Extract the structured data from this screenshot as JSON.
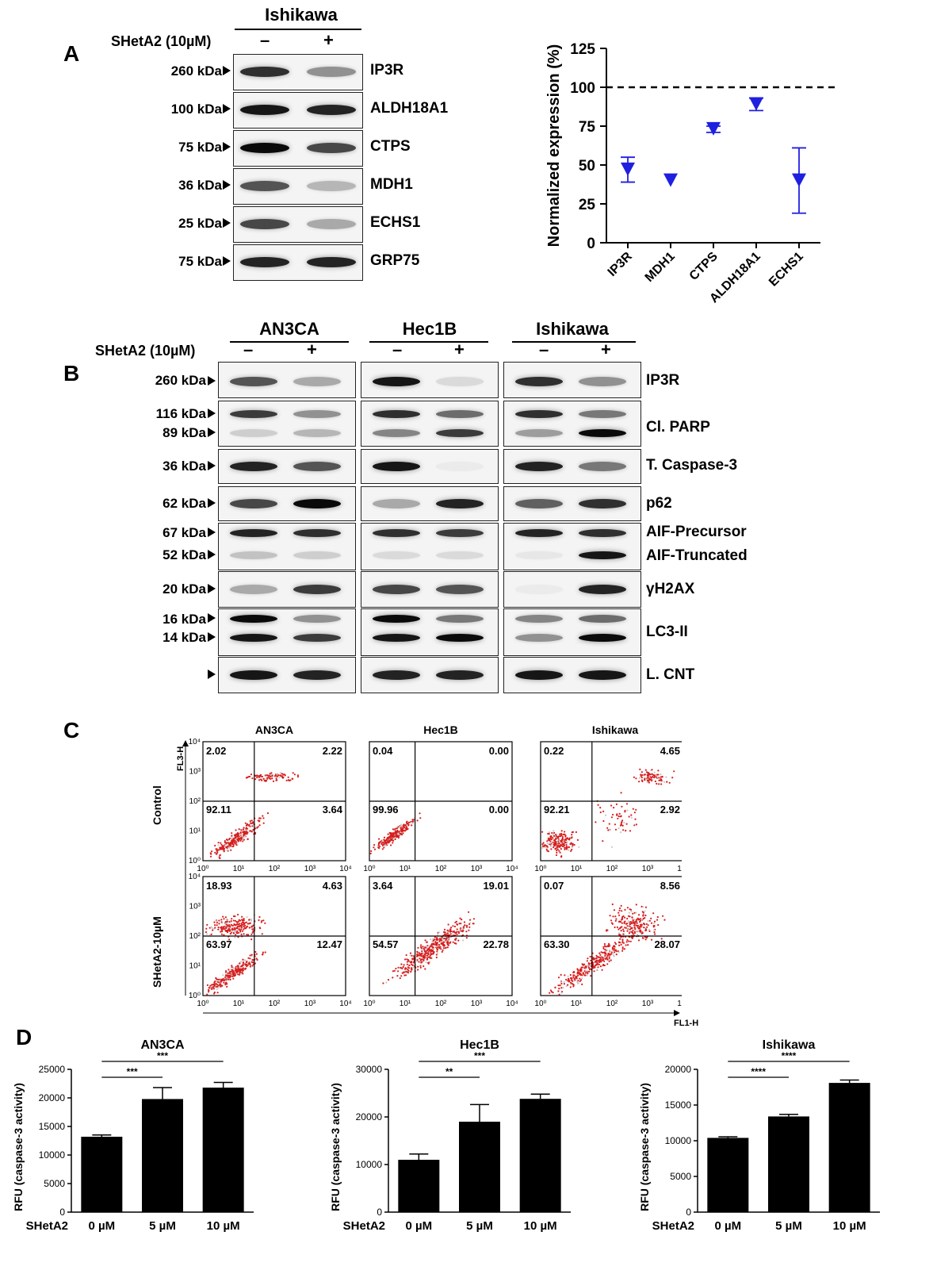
{
  "panelA": {
    "letter": "A",
    "cell_line": "Ishikawa",
    "treatment_label": "SHetA2 (10µM)",
    "minus": "–",
    "plus": "+",
    "rows": [
      {
        "kda": "260 kDa",
        "protein": "IP3R",
        "ctrl": 0.85,
        "trt": 0.45
      },
      {
        "kda": "100 kDa",
        "protein": "ALDH18A1",
        "ctrl": 0.95,
        "trt": 0.9
      },
      {
        "kda": "75 kDa",
        "protein": "CTPS",
        "ctrl": 1.0,
        "trt": 0.75
      },
      {
        "kda": "36 kDa",
        "protein": "MDH1",
        "ctrl": 0.7,
        "trt": 0.3
      },
      {
        "kda": "25 kDa",
        "protein": "ECHS1",
        "ctrl": 0.75,
        "trt": 0.35
      },
      {
        "kda": "75 kDa",
        "protein": "GRP75",
        "ctrl": 0.9,
        "trt": 0.9
      }
    ]
  },
  "chartA": {
    "chart_data": {
      "type": "scatter",
      "ylabel": "Normalized expression (%)",
      "categories": [
        "IP3R",
        "MDH1",
        "CTPS",
        "ALDH18A1",
        "ECHS1"
      ],
      "values": [
        47,
        40,
        73,
        89,
        40
      ],
      "errors": [
        8,
        1,
        2,
        4,
        21
      ],
      "yticks": [
        "0",
        "25",
        "50",
        "75",
        "100",
        "125"
      ],
      "ylim": [
        0,
        125
      ],
      "reference_line": 100,
      "marker_color": "#1f1fe0"
    }
  },
  "panelB": {
    "letter": "B",
    "treatment_label": "SHetA2 (10µM)",
    "minus": "–",
    "plus": "+",
    "lines": [
      "AN3CA",
      "Hec1B",
      "Ishikawa"
    ],
    "kdas": [
      "260 kDa",
      "116 kDa",
      "89 kDa",
      "36 kDa",
      "62 kDa",
      "67 kDa",
      "52 kDa",
      "20 kDa",
      "16 kDa",
      "14 kDa"
    ],
    "proteins": [
      "IP3R",
      "Cl. PARP",
      "T. Caspase-3",
      "p62",
      "AIF-Precursor",
      "AIF-Truncated",
      "γH2AX",
      "LC3-II",
      "L. CNT"
    ]
  },
  "panelC": {
    "letter": "C",
    "columns": [
      "AN3CA",
      "Hec1B",
      "Ishikawa"
    ],
    "rows": [
      "Control",
      "SHetA2-10µM"
    ],
    "y_axis": "FL3-H",
    "x_axis": "FL1-H",
    "ticks": [
      "10⁰",
      "10¹",
      "10²",
      "10³",
      "10⁴"
    ],
    "quadrants": [
      [
        [
          "2.02",
          "2.22",
          "92.11",
          "3.64"
        ],
        [
          "0.04",
          "0.00",
          "99.96",
          "0.00"
        ],
        [
          "0.22",
          "4.65",
          "92.21",
          "2.92"
        ]
      ],
      [
        [
          "18.93",
          "4.63",
          "63.97",
          "12.47"
        ],
        [
          "3.64",
          "19.01",
          "54.57",
          "22.78"
        ],
        [
          "0.07",
          "8.56",
          "63.30",
          "28.07"
        ]
      ]
    ]
  },
  "panelD": {
    "letter": "D",
    "x_prefix": "SHetA2",
    "chart_data": [
      {
        "type": "bar",
        "title": "AN3CA",
        "categories": [
          "0 µM",
          "5 µM",
          "10 µM"
        ],
        "values": [
          13200,
          19800,
          21800
        ],
        "errors": [
          300,
          2000,
          900
        ],
        "ylabel": "RFU (caspase-3 activity)",
        "ylim": [
          0,
          25000
        ],
        "yticks": [
          "0",
          "5000",
          "10000",
          "15000",
          "20000",
          "25000"
        ],
        "sig": [
          "***",
          "***"
        ]
      },
      {
        "type": "bar",
        "title": "Hec1B",
        "categories": [
          "0 µM",
          "5 µM",
          "10 µM"
        ],
        "values": [
          11000,
          19000,
          23800
        ],
        "errors": [
          1200,
          3600,
          1000
        ],
        "ylabel": "RFU (caspase-3 activity)",
        "ylim": [
          0,
          30000
        ],
        "yticks": [
          "0",
          "10000",
          "20000",
          "30000"
        ],
        "sig": [
          "**",
          "***"
        ]
      },
      {
        "type": "bar",
        "title": "Ishikawa",
        "categories": [
          "0 µM",
          "5 µM",
          "10 µM"
        ],
        "values": [
          10400,
          13400,
          18100
        ],
        "errors": [
          150,
          300,
          400
        ],
        "ylabel": "RFU (caspase-3 activity)",
        "ylim": [
          0,
          20000
        ],
        "yticks": [
          "0",
          "5000",
          "10000",
          "15000",
          "20000"
        ],
        "sig": [
          "****",
          "****"
        ]
      }
    ]
  }
}
